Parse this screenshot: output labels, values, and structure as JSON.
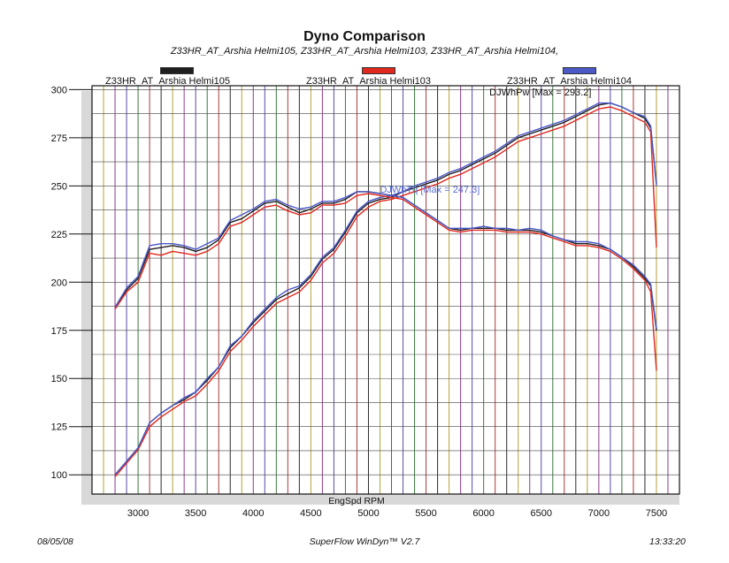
{
  "chart_data": {
    "type": "line",
    "title": "Dyno Comparison",
    "subtitle": "Z33HR_AT_Arshia Helmi105, Z33HR_AT_Arshia Helmi103, Z33HR_AT_Arshia Helmi104,",
    "xlabel": "EngSpd  RPM",
    "ylabel": "",
    "xlim": [
      2600,
      7700
    ],
    "ylim": [
      90,
      302
    ],
    "x_ticks": [
      3000,
      3500,
      4000,
      4500,
      5000,
      5500,
      6000,
      6500,
      7000,
      7500
    ],
    "y_ticks": [
      100,
      125,
      150,
      175,
      200,
      225,
      250,
      275,
      300
    ],
    "grid": true,
    "legend": [
      {
        "name": "Z33HR_AT_Arshia Helmi105",
        "color": "#1f1f1f"
      },
      {
        "name": "Z33HR_AT_Arshia Helmi103",
        "color": "#e0281e"
      },
      {
        "name": "Z33HR_AT_Arshia Helmi104",
        "color": "#4a58c8"
      }
    ],
    "annotations": [
      {
        "text": "DJWhPw [Max = 293.2]",
        "x": 6050,
        "y": 297,
        "color": "#111111"
      },
      {
        "text": "DJWhTq [Max = 247.3]",
        "x": 5100,
        "y": 246.5,
        "color": "#5a6fd8"
      }
    ],
    "x": [
      2800,
      2900,
      3000,
      3100,
      3200,
      3300,
      3400,
      3500,
      3600,
      3700,
      3800,
      3900,
      4000,
      4100,
      4200,
      4300,
      4400,
      4500,
      4600,
      4700,
      4800,
      4900,
      5000,
      5100,
      5200,
      5300,
      5400,
      5500,
      5600,
      5700,
      5800,
      5900,
      6000,
      6100,
      6200,
      6300,
      6400,
      6500,
      6600,
      6700,
      6800,
      6900,
      7000,
      7100,
      7200,
      7300,
      7400,
      7450,
      7500
    ],
    "series": [
      {
        "name": "Z33HR_AT_Arshia Helmi105",
        "metric": "power",
        "color": "#1f1f1f",
        "values": [
          100,
          107,
          114,
          127,
          132,
          136,
          139,
          143,
          149,
          156,
          166,
          172,
          179,
          185,
          191,
          194,
          197,
          203,
          212,
          217,
          226,
          236,
          241,
          243,
          244,
          247,
          249,
          251,
          253,
          256,
          258,
          261,
          264,
          267,
          271,
          275,
          277,
          279,
          281,
          283,
          286,
          289,
          292,
          293,
          291,
          288,
          285,
          280,
          251
        ]
      },
      {
        "name": "Z33HR_AT_Arshia Helmi103",
        "metric": "power",
        "color": "#e0281e",
        "values": [
          99,
          106,
          113,
          125,
          130,
          134,
          138,
          141,
          147,
          154,
          164,
          170,
          177,
          183,
          189,
          192,
          195,
          201,
          210,
          215,
          224,
          234,
          239,
          242,
          243,
          245,
          247,
          249,
          251,
          254,
          256,
          259,
          262,
          265,
          269,
          273,
          275,
          277,
          279,
          281,
          284,
          287,
          290,
          291,
          289,
          286,
          283,
          278,
          218
        ]
      },
      {
        "name": "Z33HR_AT_Arshia Helmi104",
        "metric": "power",
        "color": "#4a58c8",
        "values": [
          100,
          107,
          114,
          127,
          132,
          136,
          140,
          143,
          150,
          156,
          167,
          172,
          180,
          186,
          192,
          196,
          198,
          204,
          213,
          218,
          227,
          237,
          242,
          244,
          245,
          247,
          250,
          252,
          254,
          257,
          259,
          262,
          265,
          268,
          272,
          276,
          278,
          280,
          282,
          284,
          287,
          290,
          293,
          293,
          291,
          288,
          286,
          281,
          250
        ]
      },
      {
        "name": "Z33HR_AT_Arshia Helmi105",
        "metric": "torque",
        "color": "#1f1f1f",
        "values": [
          187,
          196,
          202,
          217,
          218,
          219,
          218,
          216,
          218,
          222,
          231,
          233,
          237,
          241,
          242,
          239,
          236,
          238,
          241,
          241,
          243,
          247,
          247,
          246,
          245,
          244,
          240,
          236,
          232,
          228,
          227,
          228,
          228,
          228,
          227,
          227,
          227,
          226,
          224,
          222,
          220,
          220,
          219,
          217,
          213,
          208,
          202,
          198,
          175
        ]
      },
      {
        "name": "Z33HR_AT_Arshia Helmi103",
        "metric": "torque",
        "color": "#e0281e",
        "values": [
          186,
          195,
          200,
          215,
          214,
          216,
          215,
          214,
          216,
          220,
          229,
          231,
          235,
          239,
          240,
          237,
          235,
          236,
          240,
          240,
          241,
          245,
          246,
          245,
          244,
          243,
          239,
          235,
          231,
          227,
          226,
          227,
          227,
          227,
          226,
          226,
          226,
          225,
          223,
          221,
          219,
          219,
          218,
          216,
          212,
          207,
          201,
          195,
          154
        ]
      },
      {
        "name": "Z33HR_AT_Arshia Helmi104",
        "metric": "torque",
        "color": "#4a58c8",
        "values": [
          187,
          197,
          203,
          219,
          220,
          220,
          219,
          217,
          220,
          223,
          232,
          235,
          238,
          242,
          243,
          240,
          238,
          239,
          242,
          242,
          244,
          247,
          247,
          246,
          245,
          244,
          240,
          236,
          232,
          228,
          228,
          228,
          229,
          228,
          228,
          227,
          228,
          227,
          224,
          222,
          221,
          221,
          220,
          217,
          213,
          209,
          203,
          199,
          176
        ]
      }
    ],
    "grid_line_colors": [
      "#b8a23a",
      "#8c3a8c",
      "#5a4aa8",
      "#3a7a3a",
      "#a83a3a",
      "#2a2a2a"
    ]
  },
  "footer": {
    "date": "08/05/08",
    "software": "SuperFlow WinDyn™ V2.7",
    "time": "13:33:20"
  }
}
